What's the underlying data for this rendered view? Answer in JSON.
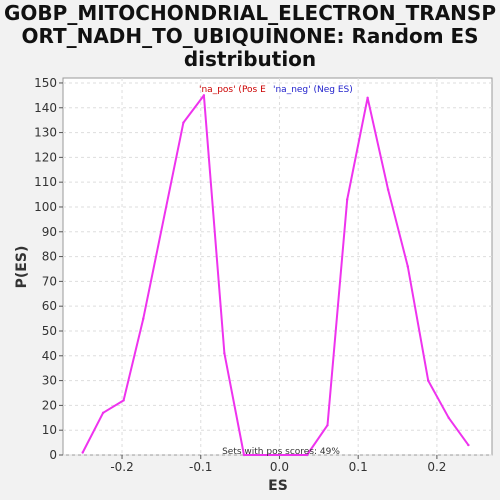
{
  "chart_data": {
    "type": "line",
    "title_lines": [
      "GOBP_MITOCHONDRIAL_ELECTRON_TRANSP",
      "ORT_NADH_TO_UBIQUINONE: Random ES",
      "distribution"
    ],
    "xlabel": "ES",
    "ylabel": "P(ES)",
    "xlim": [
      -0.275,
      0.27
    ],
    "ylim": [
      0,
      152
    ],
    "x_ticks": [
      -0.2,
      -0.1,
      0.0,
      0.1,
      0.2
    ],
    "x_tick_labels": [
      "-0.2",
      "-0.1",
      "0.0",
      "0.1",
      "0.2"
    ],
    "y_ticks": [
      0,
      10,
      20,
      30,
      40,
      50,
      60,
      70,
      80,
      90,
      100,
      110,
      120,
      130,
      140,
      150
    ],
    "grid": true,
    "legend": [
      {
        "label": "'na_pos' (Pos E",
        "color": "#cc0000"
      },
      {
        "label": "'na_neg' (Neg ES)",
        "color": "#2222cc"
      }
    ],
    "legend_position": "top-center",
    "annotation": "Sets with pos scores: 49%",
    "series": [
      {
        "color": "#ee33ee",
        "x": [
          -0.25,
          -0.224,
          -0.198,
          -0.173,
          -0.122,
          -0.096,
          -0.07,
          -0.045,
          0.035,
          0.061,
          0.086,
          0.112,
          0.138,
          0.163,
          0.189,
          0.215,
          0.24
        ],
        "y": [
          1,
          17,
          22,
          55,
          134,
          145,
          41,
          0,
          0,
          12,
          103,
          144,
          107,
          76,
          30,
          15,
          4
        ]
      }
    ]
  }
}
